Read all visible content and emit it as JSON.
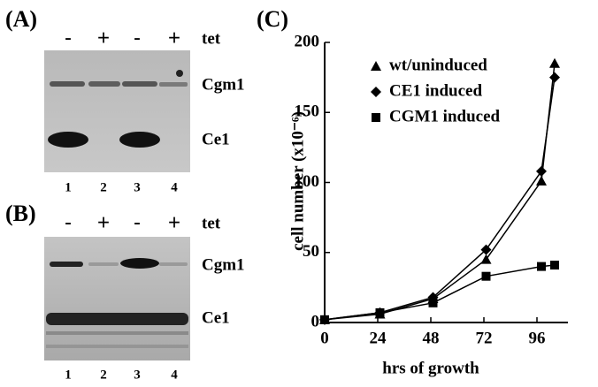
{
  "panels": [
    {
      "label": "(A)",
      "lanes": [
        "-",
        "+",
        "-",
        "+"
      ],
      "treatment": "tet",
      "bands": [
        "Cgm1",
        "Ce1"
      ],
      "lane_numbers": [
        "1",
        "2",
        "3",
        "4"
      ]
    },
    {
      "label": "(B)",
      "lanes": [
        "-",
        "+",
        "-",
        "+"
      ],
      "treatment": "tet",
      "bands": [
        "Cgm1",
        "Ce1"
      ],
      "lane_numbers": [
        "1",
        "2",
        "3",
        "4"
      ]
    }
  ],
  "chart_data": {
    "type": "line",
    "title": "(C)",
    "x_label": "hrs of growth",
    "y_label": "cell number (x10⁻⁶)",
    "x": [
      0,
      25,
      49,
      73,
      98,
      104
    ],
    "xlim": [
      0,
      110
    ],
    "xticks": [
      0,
      24,
      48,
      72,
      96
    ],
    "ylim": [
      0,
      200
    ],
    "yticks": [
      0,
      50,
      100,
      150,
      200
    ],
    "legend": "upper left",
    "series": [
      {
        "name": "wt/uninduced",
        "color": "#000000",
        "marker": "triangle",
        "values": [
          2,
          6,
          17,
          45,
          101,
          185
        ]
      },
      {
        "name": "CE1 induced",
        "color": "#000000",
        "marker": "diamond",
        "values": [
          2,
          7,
          18,
          52,
          108,
          175
        ]
      },
      {
        "name": "CGM1 induced",
        "color": "#000000",
        "marker": "square",
        "values": [
          2,
          7,
          14,
          33,
          40,
          41
        ]
      }
    ]
  }
}
